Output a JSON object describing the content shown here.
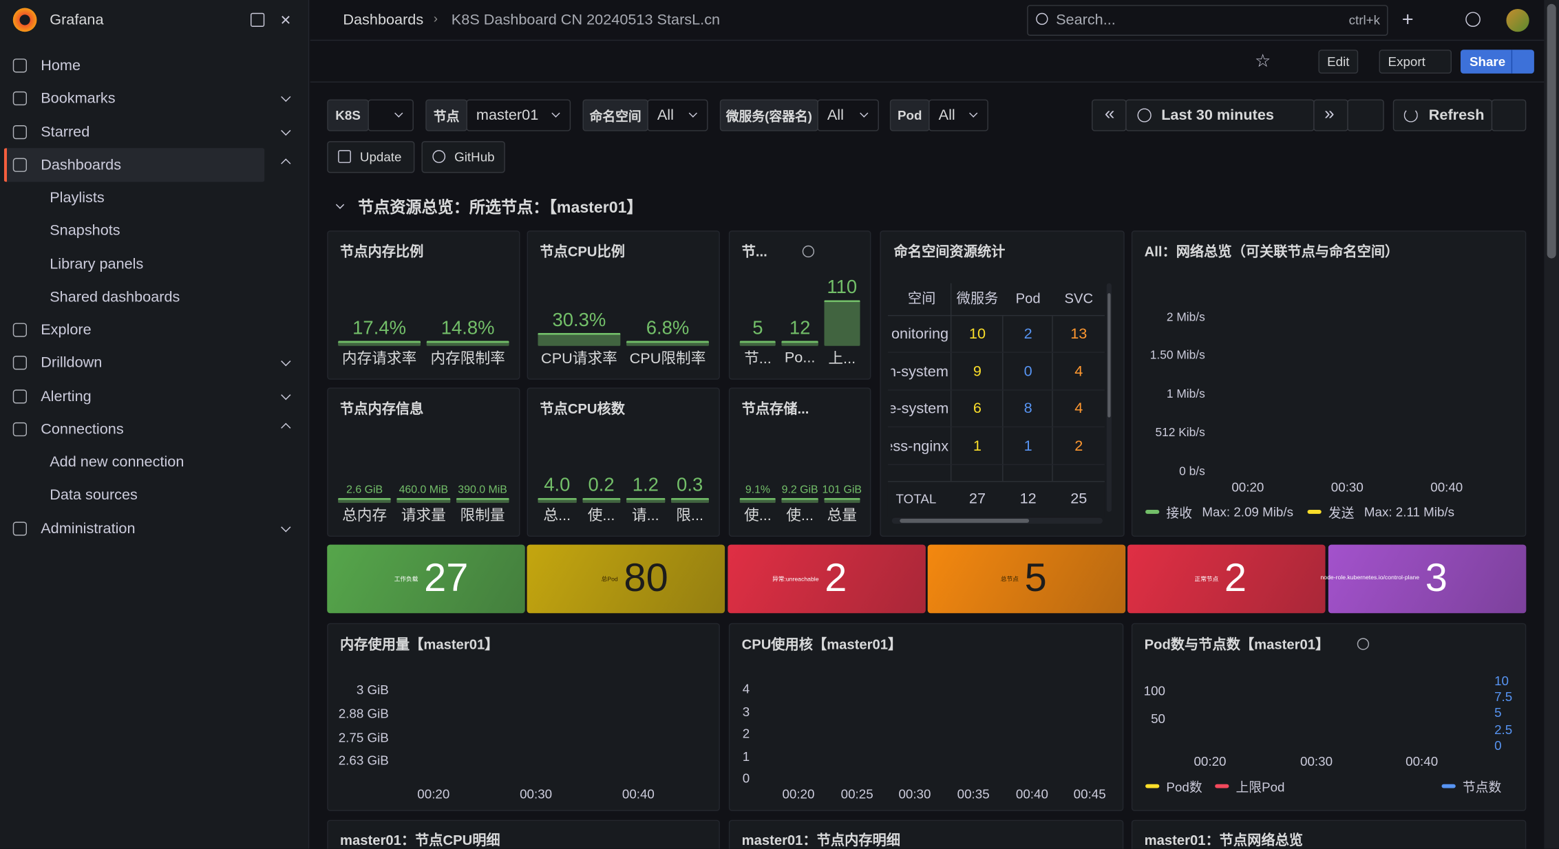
{
  "dashboard": {
    "sidebar": {
      "brand": "Grafana",
      "items": [
        {
          "label": "Home"
        },
        {
          "label": "Bookmarks"
        },
        {
          "label": "Starred"
        },
        {
          "label": "Dashboards",
          "children": [
            "Playlists",
            "Snapshots",
            "Library panels",
            "Shared dashboards"
          ]
        },
        {
          "label": "Explore"
        },
        {
          "label": "Drilldown"
        },
        {
          "label": "Alerting"
        },
        {
          "label": "Connections",
          "children": [
            "Add new connection",
            "Data sources"
          ]
        },
        {
          "label": "Administration"
        }
      ]
    },
    "breadcrumb": [
      "Dashboards",
      "K8S Dashboard CN 20240513 StarsL.cn"
    ],
    "search": {
      "placeholder": "Search...",
      "shortcut": "ctrl+k"
    },
    "actions": [
      "Edit",
      "Export",
      "Share"
    ],
    "variables": [
      {
        "label": "K8S"
      },
      {
        "label": "节点",
        "value": "master01"
      },
      {
        "label": "命名空间",
        "value": "All"
      },
      {
        "label": "微服务(容器名)",
        "value": "All"
      },
      {
        "label": "Pod",
        "value": "All"
      }
    ],
    "time_range": "Last 30 minutes",
    "refresh": "Refresh",
    "links": [
      "Update",
      "GitHub"
    ],
    "row_title": "节点资源总览：所选节点：【master01】",
    "gauges": [
      {
        "title": "节点内存比例",
        "items": [
          {
            "value": "17.4%",
            "label": "内存请求率"
          },
          {
            "value": "14.8%",
            "label": "内存限制率"
          }
        ]
      },
      {
        "title": "节点CPU比例",
        "items": [
          {
            "value": "30.3%",
            "label": "CPU请求率"
          },
          {
            "value": "6.8%",
            "label": "CPU限制率"
          }
        ]
      },
      {
        "title": "节...",
        "items": [
          {
            "value": "5",
            "label": "节..."
          },
          {
            "value": "12",
            "label": "Po..."
          },
          {
            "value": "110",
            "label": "上..."
          }
        ]
      },
      {
        "title": "节点内存信息",
        "items": [
          {
            "value": "2.6 GiB",
            "label": "总内存"
          },
          {
            "value": "460.0 MiB",
            "label": "请求量"
          },
          {
            "value": "390.0 MiB",
            "label": "限制量"
          }
        ]
      },
      {
        "title": "节点CPU核数",
        "items": [
          {
            "value": "4.0",
            "label": "总..."
          },
          {
            "value": "0.2",
            "label": "使..."
          },
          {
            "value": "1.2",
            "label": "请..."
          },
          {
            "value": "0.3",
            "label": "限..."
          }
        ]
      },
      {
        "title": "节点存储...",
        "items": [
          {
            "value": "9.1%",
            "label": "使..."
          },
          {
            "value": "9.2 GiB",
            "label": "使..."
          },
          {
            "value": "101 GiB",
            "label": "总量"
          }
        ]
      }
    ],
    "table": {
      "title": "命名空间资源统计",
      "columns": [
        "空间",
        "微服务",
        "Pod",
        "SVC"
      ],
      "rows": [
        [
          "monitoring",
          10,
          2,
          13
        ],
        [
          "longhorn-system",
          9,
          0,
          4
        ],
        [
          "kube-system",
          6,
          8,
          4
        ],
        [
          "ingress-nginx",
          1,
          1,
          2
        ]
      ],
      "total": [
        "TOTAL",
        27,
        12,
        25
      ]
    },
    "network": {
      "title": "All：网络总览（可关联节点与命名空间）",
      "yticks": [
        "2 Mib/s",
        "1.50 Mib/s",
        "1 Mib/s",
        "512 Kib/s",
        "0 b/s"
      ],
      "xticks": [
        "00:20",
        "00:30",
        "00:40"
      ],
      "legend": [
        {
          "name": "接收",
          "color": "#73bf69",
          "stat": "Max: 2.09 Mib/s"
        },
        {
          "name": "发送",
          "color": "#fade2a",
          "stat": "Max: 2.11 Mib/s"
        }
      ]
    },
    "stats": [
      {
        "label": "工作负载",
        "value": 27,
        "color": "#56a64b"
      },
      {
        "label": "总Pod",
        "value": 80,
        "color": "#c4a60f"
      },
      {
        "label": "异常:unreachable",
        "value": 2,
        "color": "#e02f44"
      },
      {
        "label": "总节点",
        "value": 5,
        "color": "#f4880f"
      },
      {
        "label": "正常节点",
        "value": 2,
        "color": "#e02f44"
      },
      {
        "label": "node-role.kubernetes.io/control-plane",
        "value": 3,
        "color": "#a352cc"
      }
    ],
    "memory": {
      "title": "内存使用量【master01】",
      "yticks": [
        "3 GiB",
        "2.88 GiB",
        "2.75 GiB",
        "2.63 GiB"
      ],
      "xticks": [
        "00:20",
        "00:30",
        "00:40"
      ]
    },
    "cpu": {
      "title": "CPU使用核【master01】",
      "yticks": [
        4,
        3,
        2,
        1,
        0
      ],
      "xticks": [
        "00:20",
        "00:25",
        "00:30",
        "00:35",
        "00:40",
        "00:45"
      ]
    },
    "pods": {
      "title": "Pod数与节点数【master01】",
      "yticks": [
        100,
        50
      ],
      "y2ticks": [
        10,
        7.5,
        5,
        2.5,
        0
      ],
      "xticks": [
        "00:20",
        "00:30",
        "00:40"
      ],
      "legend": [
        {
          "name": "Pod数",
          "color": "#fade2a"
        },
        {
          "name": "上限Pod",
          "color": "#f2495c"
        },
        {
          "name": "节点数",
          "color": "#5794f2"
        }
      ]
    },
    "bottom_titles": [
      "master01：节点CPU明细",
      "master01：节点内存明细",
      "master01：节点网络总览"
    ]
  }
}
